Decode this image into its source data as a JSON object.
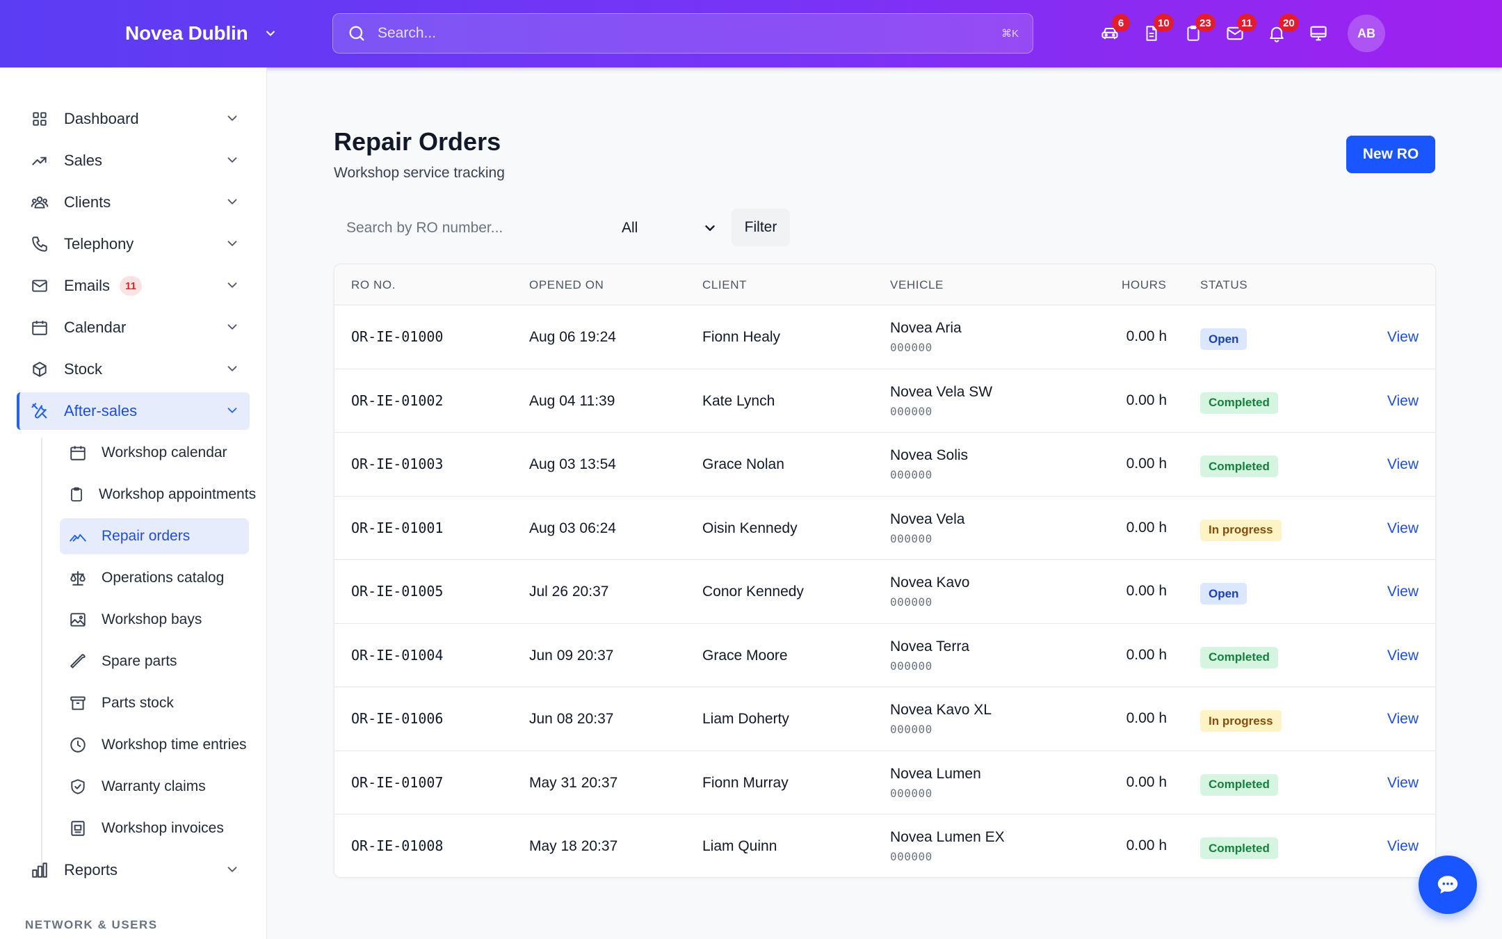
{
  "header": {
    "brand": "Novea Dublin",
    "search_placeholder": "Search...",
    "search_shortcut": "⌘K",
    "icons": [
      {
        "icon": "car-icon",
        "badge": "6"
      },
      {
        "icon": "document-icon",
        "badge": "10"
      },
      {
        "icon": "clipboard-icon",
        "badge": "23"
      },
      {
        "icon": "mail-icon",
        "badge": "11"
      },
      {
        "icon": "bell-icon",
        "badge": "20"
      },
      {
        "icon": "monitor-icon",
        "badge": ""
      }
    ],
    "avatar_initials": "AB"
  },
  "sidebar": {
    "items": [
      {
        "label": "Dashboard",
        "icon": "grid-icon"
      },
      {
        "label": "Sales",
        "icon": "trending-up-icon"
      },
      {
        "label": "Clients",
        "icon": "users-icon"
      },
      {
        "label": "Telephony",
        "icon": "phone-icon"
      },
      {
        "label": "Emails",
        "icon": "mail-icon",
        "badge": "11"
      },
      {
        "label": "Calendar",
        "icon": "calendar-icon"
      },
      {
        "label": "Stock",
        "icon": "box-icon"
      },
      {
        "label": "After-sales",
        "icon": "tools-icon",
        "active": true
      },
      {
        "label": "Reports",
        "icon": "bar-chart-icon"
      }
    ],
    "after_sales_items": [
      {
        "label": "Workshop calendar",
        "icon": "calendar-icon"
      },
      {
        "label": "Workshop appointments",
        "icon": "clipboard-icon"
      },
      {
        "label": "Repair orders",
        "icon": "wrench-icon",
        "active": true
      },
      {
        "label": "Operations catalog",
        "icon": "scale-icon"
      },
      {
        "label": "Workshop bays",
        "icon": "image-icon"
      },
      {
        "label": "Spare parts",
        "icon": "spanner-icon"
      },
      {
        "label": "Parts stock",
        "icon": "archive-icon"
      },
      {
        "label": "Workshop time entries",
        "icon": "clock-icon"
      },
      {
        "label": "Warranty claims",
        "icon": "shield-check-icon"
      },
      {
        "label": "Workshop invoices",
        "icon": "invoice-icon"
      }
    ],
    "section_label": "NETWORK & USERS"
  },
  "main": {
    "title": "Repair Orders",
    "subtitle": "Workshop service tracking",
    "new_button": "New RO",
    "search_placeholder": "Search by RO number...",
    "status_filter": "All",
    "filter_button": "Filter",
    "columns": [
      "RO NO.",
      "OPENED ON",
      "CLIENT",
      "VEHICLE",
      "HOURS",
      "STATUS"
    ],
    "view_label": "View",
    "rows": [
      {
        "ro": "OR-IE-01000",
        "opened": "Aug 06 19:24",
        "client": "Fionn Healy",
        "vehicle": "Novea Aria",
        "vin": "000000",
        "hours": "0.00 h",
        "status": "Open",
        "status_kind": "open"
      },
      {
        "ro": "OR-IE-01002",
        "opened": "Aug 04 11:39",
        "client": "Kate Lynch",
        "vehicle": "Novea Vela SW",
        "vin": "000000",
        "hours": "0.00 h",
        "status": "Completed",
        "status_kind": "completed"
      },
      {
        "ro": "OR-IE-01003",
        "opened": "Aug 03 13:54",
        "client": "Grace Nolan",
        "vehicle": "Novea Solis",
        "vin": "000000",
        "hours": "0.00 h",
        "status": "Completed",
        "status_kind": "completed"
      },
      {
        "ro": "OR-IE-01001",
        "opened": "Aug 03 06:24",
        "client": "Oisin Kennedy",
        "vehicle": "Novea Vela",
        "vin": "000000",
        "hours": "0.00 h",
        "status": "In progress",
        "status_kind": "progress"
      },
      {
        "ro": "OR-IE-01005",
        "opened": "Jul 26 20:37",
        "client": "Conor Kennedy",
        "vehicle": "Novea Kavo",
        "vin": "000000",
        "hours": "0.00 h",
        "status": "Open",
        "status_kind": "open"
      },
      {
        "ro": "OR-IE-01004",
        "opened": "Jun 09 20:37",
        "client": "Grace Moore",
        "vehicle": "Novea Terra",
        "vin": "000000",
        "hours": "0.00 h",
        "status": "Completed",
        "status_kind": "completed"
      },
      {
        "ro": "OR-IE-01006",
        "opened": "Jun 08 20:37",
        "client": "Liam Doherty",
        "vehicle": "Novea Kavo XL",
        "vin": "000000",
        "hours": "0.00 h",
        "status": "In progress",
        "status_kind": "progress"
      },
      {
        "ro": "OR-IE-01007",
        "opened": "May 31 20:37",
        "client": "Fionn Murray",
        "vehicle": "Novea Lumen",
        "vin": "000000",
        "hours": "0.00 h",
        "status": "Completed",
        "status_kind": "completed"
      },
      {
        "ro": "OR-IE-01008",
        "opened": "May 18 20:37",
        "client": "Liam Quinn",
        "vehicle": "Novea Lumen EX",
        "vin": "000000",
        "hours": "0.00 h",
        "status": "Completed",
        "status_kind": "completed"
      }
    ]
  },
  "chat": {
    "icon": "chat-bubble-icon"
  },
  "colors": {
    "accent": "#1a56ff",
    "header_start": "#5b3df4",
    "header_end": "#a020f0",
    "badge": "#e11d2e"
  }
}
